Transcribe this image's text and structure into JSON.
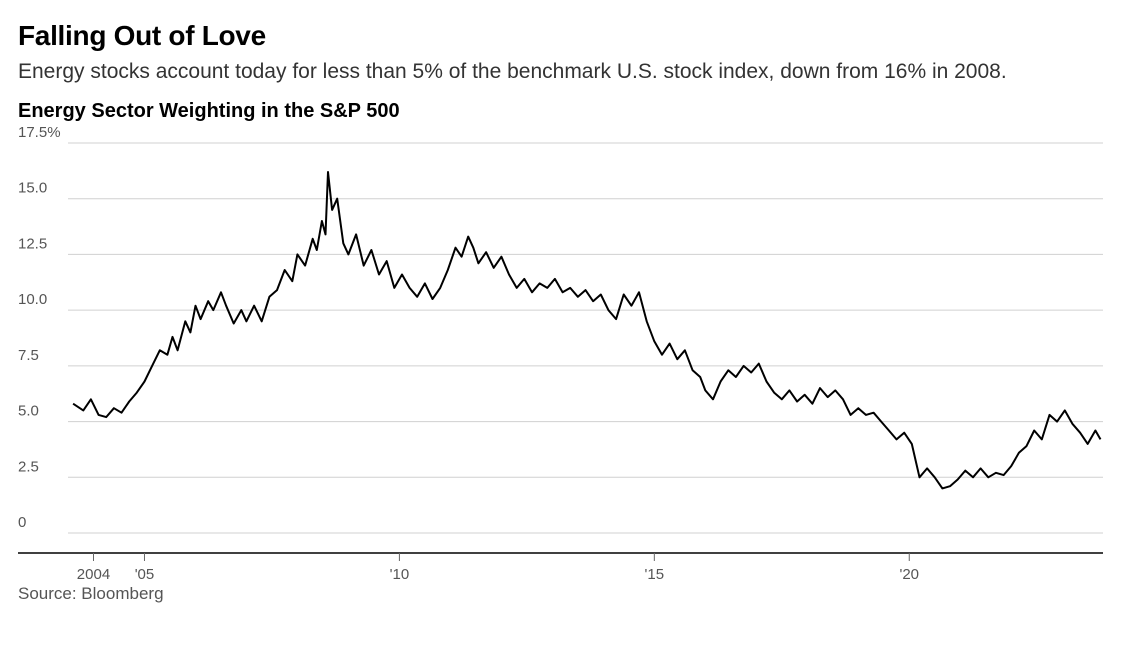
{
  "header": {
    "title": "Falling Out of Love",
    "subtitle": "Energy stocks account today for less than 5% of the benchmark U.S. stock index, down from 16% in 2008."
  },
  "chart": {
    "type": "line",
    "title": "Energy Sector Weighting in the S&P 500",
    "line_color": "#000000",
    "line_width": 2,
    "background_color": "#ffffff",
    "grid_color": "#d0d0d0",
    "axis_color": "#000000",
    "label_color": "#555555",
    "label_fontsize": 15,
    "title_fontsize": 20,
    "y_axis": {
      "min": 0,
      "max": 17.5,
      "tick_step": 2.5,
      "ticks": [
        0,
        2.5,
        5.0,
        7.5,
        10.0,
        12.5,
        15.0,
        17.5
      ],
      "tick_labels": [
        "0",
        "2.5",
        "5.0",
        "7.5",
        "10.0",
        "12.5",
        "15.0",
        "17.5%"
      ]
    },
    "x_axis": {
      "min": 2003.5,
      "max": 2023.8,
      "ticks": [
        2004,
        2005,
        2010,
        2015,
        2020
      ],
      "tick_labels": [
        "2004",
        "'05",
        "'10",
        "'15",
        "'20"
      ]
    },
    "series": [
      {
        "x": 2003.6,
        "y": 5.8
      },
      {
        "x": 2003.8,
        "y": 5.5
      },
      {
        "x": 2003.95,
        "y": 6.0
      },
      {
        "x": 2004.1,
        "y": 5.3
      },
      {
        "x": 2004.25,
        "y": 5.2
      },
      {
        "x": 2004.4,
        "y": 5.6
      },
      {
        "x": 2004.55,
        "y": 5.4
      },
      {
        "x": 2004.7,
        "y": 5.9
      },
      {
        "x": 2004.85,
        "y": 6.3
      },
      {
        "x": 2005.0,
        "y": 6.8
      },
      {
        "x": 2005.15,
        "y": 7.5
      },
      {
        "x": 2005.3,
        "y": 8.2
      },
      {
        "x": 2005.45,
        "y": 8.0
      },
      {
        "x": 2005.55,
        "y": 8.8
      },
      {
        "x": 2005.65,
        "y": 8.2
      },
      {
        "x": 2005.8,
        "y": 9.5
      },
      {
        "x": 2005.9,
        "y": 9.0
      },
      {
        "x": 2006.0,
        "y": 10.2
      },
      {
        "x": 2006.1,
        "y": 9.6
      },
      {
        "x": 2006.25,
        "y": 10.4
      },
      {
        "x": 2006.35,
        "y": 10.0
      },
      {
        "x": 2006.5,
        "y": 10.8
      },
      {
        "x": 2006.6,
        "y": 10.2
      },
      {
        "x": 2006.75,
        "y": 9.4
      },
      {
        "x": 2006.9,
        "y": 10.0
      },
      {
        "x": 2007.0,
        "y": 9.5
      },
      {
        "x": 2007.15,
        "y": 10.2
      },
      {
        "x": 2007.3,
        "y": 9.5
      },
      {
        "x": 2007.45,
        "y": 10.6
      },
      {
        "x": 2007.6,
        "y": 10.9
      },
      {
        "x": 2007.75,
        "y": 11.8
      },
      {
        "x": 2007.9,
        "y": 11.3
      },
      {
        "x": 2008.0,
        "y": 12.5
      },
      {
        "x": 2008.15,
        "y": 12.0
      },
      {
        "x": 2008.3,
        "y": 13.2
      },
      {
        "x": 2008.38,
        "y": 12.7
      },
      {
        "x": 2008.48,
        "y": 14.0
      },
      {
        "x": 2008.55,
        "y": 13.4
      },
      {
        "x": 2008.6,
        "y": 16.2
      },
      {
        "x": 2008.68,
        "y": 14.5
      },
      {
        "x": 2008.78,
        "y": 15.0
      },
      {
        "x": 2008.9,
        "y": 13.0
      },
      {
        "x": 2009.0,
        "y": 12.5
      },
      {
        "x": 2009.15,
        "y": 13.4
      },
      {
        "x": 2009.3,
        "y": 12.0
      },
      {
        "x": 2009.45,
        "y": 12.7
      },
      {
        "x": 2009.6,
        "y": 11.6
      },
      {
        "x": 2009.75,
        "y": 12.2
      },
      {
        "x": 2009.9,
        "y": 11.0
      },
      {
        "x": 2010.05,
        "y": 11.6
      },
      {
        "x": 2010.2,
        "y": 11.0
      },
      {
        "x": 2010.35,
        "y": 10.6
      },
      {
        "x": 2010.5,
        "y": 11.2
      },
      {
        "x": 2010.65,
        "y": 10.5
      },
      {
        "x": 2010.8,
        "y": 11.0
      },
      {
        "x": 2010.95,
        "y": 11.8
      },
      {
        "x": 2011.1,
        "y": 12.8
      },
      {
        "x": 2011.22,
        "y": 12.4
      },
      {
        "x": 2011.35,
        "y": 13.3
      },
      {
        "x": 2011.45,
        "y": 12.8
      },
      {
        "x": 2011.55,
        "y": 12.1
      },
      {
        "x": 2011.7,
        "y": 12.6
      },
      {
        "x": 2011.85,
        "y": 11.9
      },
      {
        "x": 2012.0,
        "y": 12.4
      },
      {
        "x": 2012.15,
        "y": 11.6
      },
      {
        "x": 2012.3,
        "y": 11.0
      },
      {
        "x": 2012.45,
        "y": 11.4
      },
      {
        "x": 2012.6,
        "y": 10.8
      },
      {
        "x": 2012.75,
        "y": 11.2
      },
      {
        "x": 2012.9,
        "y": 11.0
      },
      {
        "x": 2013.05,
        "y": 11.4
      },
      {
        "x": 2013.2,
        "y": 10.8
      },
      {
        "x": 2013.35,
        "y": 11.0
      },
      {
        "x": 2013.5,
        "y": 10.6
      },
      {
        "x": 2013.65,
        "y": 10.9
      },
      {
        "x": 2013.8,
        "y": 10.4
      },
      {
        "x": 2013.95,
        "y": 10.7
      },
      {
        "x": 2014.1,
        "y": 10.0
      },
      {
        "x": 2014.25,
        "y": 9.6
      },
      {
        "x": 2014.4,
        "y": 10.7
      },
      {
        "x": 2014.55,
        "y": 10.2
      },
      {
        "x": 2014.7,
        "y": 10.8
      },
      {
        "x": 2014.85,
        "y": 9.5
      },
      {
        "x": 2015.0,
        "y": 8.6
      },
      {
        "x": 2015.15,
        "y": 8.0
      },
      {
        "x": 2015.3,
        "y": 8.5
      },
      {
        "x": 2015.45,
        "y": 7.8
      },
      {
        "x": 2015.6,
        "y": 8.2
      },
      {
        "x": 2015.75,
        "y": 7.3
      },
      {
        "x": 2015.9,
        "y": 7.0
      },
      {
        "x": 2016.0,
        "y": 6.4
      },
      {
        "x": 2016.15,
        "y": 6.0
      },
      {
        "x": 2016.3,
        "y": 6.8
      },
      {
        "x": 2016.45,
        "y": 7.3
      },
      {
        "x": 2016.6,
        "y": 7.0
      },
      {
        "x": 2016.75,
        "y": 7.5
      },
      {
        "x": 2016.9,
        "y": 7.2
      },
      {
        "x": 2017.05,
        "y": 7.6
      },
      {
        "x": 2017.2,
        "y": 6.8
      },
      {
        "x": 2017.35,
        "y": 6.3
      },
      {
        "x": 2017.5,
        "y": 6.0
      },
      {
        "x": 2017.65,
        "y": 6.4
      },
      {
        "x": 2017.8,
        "y": 5.9
      },
      {
        "x": 2017.95,
        "y": 6.2
      },
      {
        "x": 2018.1,
        "y": 5.8
      },
      {
        "x": 2018.25,
        "y": 6.5
      },
      {
        "x": 2018.4,
        "y": 6.1
      },
      {
        "x": 2018.55,
        "y": 6.4
      },
      {
        "x": 2018.7,
        "y": 6.0
      },
      {
        "x": 2018.85,
        "y": 5.3
      },
      {
        "x": 2019.0,
        "y": 5.6
      },
      {
        "x": 2019.15,
        "y": 5.3
      },
      {
        "x": 2019.3,
        "y": 5.4
      },
      {
        "x": 2019.45,
        "y": 5.0
      },
      {
        "x": 2019.6,
        "y": 4.6
      },
      {
        "x": 2019.75,
        "y": 4.2
      },
      {
        "x": 2019.9,
        "y": 4.5
      },
      {
        "x": 2020.05,
        "y": 4.0
      },
      {
        "x": 2020.2,
        "y": 2.5
      },
      {
        "x": 2020.35,
        "y": 2.9
      },
      {
        "x": 2020.5,
        "y": 2.5
      },
      {
        "x": 2020.65,
        "y": 2.0
      },
      {
        "x": 2020.8,
        "y": 2.1
      },
      {
        "x": 2020.95,
        "y": 2.4
      },
      {
        "x": 2021.1,
        "y": 2.8
      },
      {
        "x": 2021.25,
        "y": 2.5
      },
      {
        "x": 2021.4,
        "y": 2.9
      },
      {
        "x": 2021.55,
        "y": 2.5
      },
      {
        "x": 2021.7,
        "y": 2.7
      },
      {
        "x": 2021.85,
        "y": 2.6
      },
      {
        "x": 2022.0,
        "y": 3.0
      },
      {
        "x": 2022.15,
        "y": 3.6
      },
      {
        "x": 2022.3,
        "y": 3.9
      },
      {
        "x": 2022.45,
        "y": 4.6
      },
      {
        "x": 2022.6,
        "y": 4.2
      },
      {
        "x": 2022.75,
        "y": 5.3
      },
      {
        "x": 2022.9,
        "y": 5.0
      },
      {
        "x": 2023.05,
        "y": 5.5
      },
      {
        "x": 2023.2,
        "y": 4.9
      },
      {
        "x": 2023.35,
        "y": 4.5
      },
      {
        "x": 2023.5,
        "y": 4.0
      },
      {
        "x": 2023.65,
        "y": 4.6
      },
      {
        "x": 2023.75,
        "y": 4.2
      }
    ]
  },
  "source": "Source: Bloomberg"
}
